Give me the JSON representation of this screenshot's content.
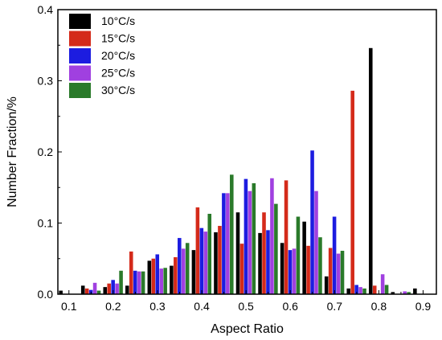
{
  "chart_data": {
    "type": "bar",
    "xlabel": "Aspect Ratio",
    "ylabel": "Number Fraction/%",
    "xlim": [
      0.075,
      0.93
    ],
    "ylim": [
      0,
      0.4
    ],
    "xticks": [
      "0.1",
      "0.2",
      "0.3",
      "0.4",
      "0.5",
      "0.6",
      "0.7",
      "0.8",
      "0.9"
    ],
    "yticks": [
      "0.0",
      "0.1",
      "0.2",
      "0.3",
      "0.4"
    ],
    "legend_position": "top-left",
    "bin_width": 0.05,
    "series": [
      {
        "name": "10°C/s",
        "color": "#000000",
        "x": [
          0.1,
          0.15,
          0.2,
          0.25,
          0.3,
          0.35,
          0.4,
          0.45,
          0.5,
          0.55,
          0.6,
          0.65,
          0.7,
          0.75,
          0.8,
          0.85,
          0.9
        ],
        "values": [
          0.005,
          0.012,
          0.01,
          0.012,
          0.047,
          0.04,
          0.062,
          0.087,
          0.115,
          0.086,
          0.072,
          0.102,
          0.025,
          0.008,
          0.346,
          0.003,
          0.008
        ]
      },
      {
        "name": "15°C/s",
        "color": "#d42a1a",
        "x": [
          0.15,
          0.2,
          0.25,
          0.3,
          0.35,
          0.4,
          0.45,
          0.5,
          0.55,
          0.6,
          0.65,
          0.7,
          0.75,
          0.8
        ],
        "values": [
          0.008,
          0.015,
          0.06,
          0.05,
          0.052,
          0.122,
          0.096,
          0.071,
          0.115,
          0.16,
          0.068,
          0.065,
          0.286,
          0.012
        ]
      },
      {
        "name": "20°C/s",
        "color": "#1c1ce0",
        "x": [
          0.15,
          0.2,
          0.25,
          0.3,
          0.35,
          0.4,
          0.45,
          0.5,
          0.55,
          0.6,
          0.65,
          0.7,
          0.75
        ],
        "values": [
          0.006,
          0.02,
          0.033,
          0.056,
          0.079,
          0.093,
          0.142,
          0.162,
          0.09,
          0.062,
          0.202,
          0.109,
          0.013
        ]
      },
      {
        "name": "25°C/s",
        "color": "#a040e0",
        "x": [
          0.15,
          0.2,
          0.25,
          0.3,
          0.35,
          0.4,
          0.45,
          0.5,
          0.55,
          0.6,
          0.65,
          0.7,
          0.75,
          0.8,
          0.85
        ],
        "values": [
          0.016,
          0.015,
          0.032,
          0.036,
          0.064,
          0.088,
          0.142,
          0.145,
          0.163,
          0.064,
          0.145,
          0.057,
          0.01,
          0.028,
          0.004
        ]
      },
      {
        "name": "30°C/s",
        "color": "#2a7a2a",
        "x": [
          0.15,
          0.2,
          0.25,
          0.3,
          0.35,
          0.4,
          0.45,
          0.5,
          0.55,
          0.6,
          0.65,
          0.7,
          0.75,
          0.8,
          0.85
        ],
        "values": [
          0.005,
          0.033,
          0.032,
          0.037,
          0.072,
          0.113,
          0.168,
          0.156,
          0.127,
          0.109,
          0.08,
          0.061,
          0.008,
          0.013,
          0.003
        ]
      }
    ]
  }
}
